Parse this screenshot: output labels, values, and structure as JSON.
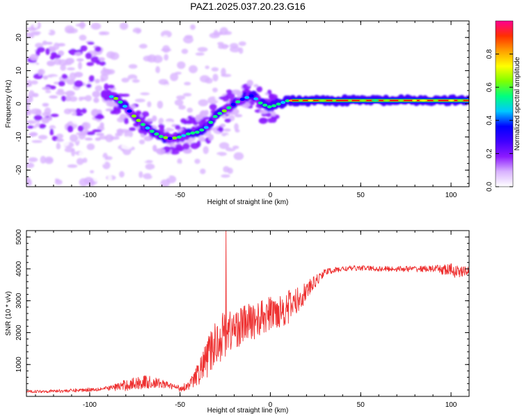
{
  "figure_title": "PAZ1.2025.037.20.23.G16",
  "chart_data": [
    {
      "type": "heatmap",
      "title": "PAZ1.2025.037.20.23.G16",
      "xlabel": "Height of straight line (km)",
      "ylabel": "Frequency (Hz)",
      "xlim": [
        -135,
        110
      ],
      "ylim": [
        -25,
        25
      ],
      "xticks": [
        -100,
        -50,
        0,
        50,
        100
      ],
      "xtick_labels": [
        "-100",
        "-50",
        "0",
        "50",
        "100"
      ],
      "yticks": [
        -20,
        -10,
        0,
        10,
        20
      ],
      "ytick_labels": [
        "-20",
        "-10",
        "0",
        "10",
        "20"
      ],
      "colorbar": {
        "label": "Normalized spectral amplitude",
        "range": [
          0,
          1
        ],
        "ticks": [
          0.0,
          0.2,
          0.4,
          0.6,
          0.8
        ],
        "tick_labels": [
          "0.0",
          "0.2",
          "0.4",
          "0.6",
          "0.8"
        ],
        "colormap": [
          "#ffffff",
          "#d9b3ff",
          "#8c1aff",
          "#4000ff",
          "#0000ff",
          "#00c8ff",
          "#00ff80",
          "#7fff00",
          "#ffff00",
          "#ffa000",
          "#ff3000",
          "#ff0090"
        ]
      },
      "ridge": {
        "height_km": [
          -92,
          -85,
          -80,
          -75,
          -70,
          -65,
          -60,
          -55,
          -50,
          -45,
          -40,
          -35,
          -30,
          -25,
          -20,
          -15,
          -10,
          -5,
          0,
          5,
          10,
          15,
          20,
          30,
          50,
          70,
          90,
          110
        ],
        "frequency_hz": [
          3,
          1.5,
          -1,
          -4,
          -6.5,
          -8.5,
          -10,
          -10.5,
          -10,
          -9,
          -8.5,
          -7,
          -3.5,
          -2,
          0,
          1.5,
          2.5,
          0,
          -1,
          0,
          1,
          1,
          1,
          1,
          1,
          1,
          1,
          1
        ]
      }
    },
    {
      "type": "line",
      "title": "",
      "xlabel": "Height of straight line (km)",
      "ylabel": "SNR (10 * v/v)",
      "xlim": [
        -135,
        110
      ],
      "ylim": [
        0,
        5200
      ],
      "xticks": [
        -100,
        -50,
        0,
        50,
        100
      ],
      "xtick_labels": [
        "-100",
        "-50",
        "0",
        "50",
        "100"
      ],
      "yticks": [
        1000,
        2000,
        3000,
        4000,
        5000
      ],
      "ytick_labels": [
        "1000",
        "2000",
        "3000",
        "4000",
        "5000"
      ],
      "color": "#ee3030",
      "trend": {
        "x": [
          -135,
          -110,
          -90,
          -80,
          -70,
          -60,
          -50,
          -45,
          -40,
          -35,
          -30,
          -25,
          -20,
          -15,
          -10,
          -5,
          0,
          5,
          10,
          15,
          20,
          25,
          30,
          40,
          50,
          60,
          70,
          80,
          90,
          100,
          105,
          110
        ],
        "y": [
          150,
          180,
          250,
          350,
          450,
          400,
          250,
          350,
          700,
          1200,
          1700,
          2000,
          2100,
          2250,
          2350,
          2450,
          2600,
          2700,
          2800,
          3000,
          3300,
          3600,
          3900,
          4000,
          4030,
          4000,
          4000,
          4000,
          4000,
          3950,
          3900,
          3950
        ]
      },
      "noise_amplitude": {
        "x": [
          -135,
          -90,
          -80,
          -70,
          -55,
          -45,
          -40,
          -35,
          -30,
          -25,
          -20,
          -10,
          0,
          10,
          20,
          30,
          50,
          90,
          100,
          110
        ],
        "y": [
          40,
          70,
          180,
          230,
          90,
          130,
          350,
          600,
          750,
          750,
          650,
          600,
          550,
          550,
          300,
          100,
          80,
          100,
          230,
          120
        ]
      },
      "spike": {
        "x": -24.5,
        "y": 5200
      }
    }
  ]
}
